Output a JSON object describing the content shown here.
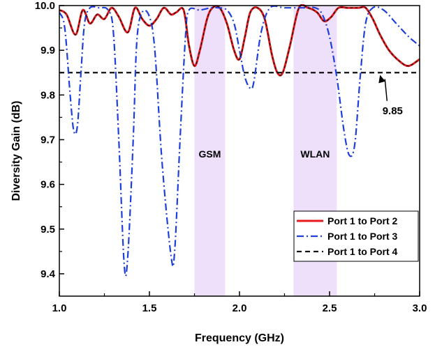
{
  "chart_data": {
    "type": "line",
    "xlabel": "Frequency (GHz)",
    "ylabel": "Diversity Gain (dB)",
    "xlim": [
      1.0,
      3.0
    ],
    "ylim": [
      9.35,
      10.0
    ],
    "xticks": [
      "1.0",
      "1.5",
      "2.0",
      "2.5",
      "3.0"
    ],
    "yticks": [
      "9.4",
      "9.5",
      "9.6",
      "9.7",
      "9.8",
      "9.9",
      "10.0"
    ],
    "grid": false,
    "legend_position": "bottom-right",
    "bands": [
      {
        "label": "GSM",
        "x0": 1.75,
        "x1": 1.92,
        "label_y": 9.66,
        "color": "#e8d4f8"
      },
      {
        "label": "WLAN",
        "x0": 2.3,
        "x1": 2.54,
        "label_y": 9.66,
        "color": "#e8d4f8"
      }
    ],
    "annotation": {
      "text": "9.85",
      "x": 2.85,
      "y": 9.765,
      "arrow_to": [
        2.78,
        9.845
      ]
    },
    "series": [
      {
        "name": "Port 1 to Port 2",
        "color": "#e41a1c",
        "style": "solid",
        "points": [
          [
            1.0,
            9.99
          ],
          [
            1.04,
            9.98
          ],
          [
            1.09,
            9.935
          ],
          [
            1.13,
            9.99
          ],
          [
            1.17,
            9.96
          ],
          [
            1.21,
            9.98
          ],
          [
            1.25,
            9.97
          ],
          [
            1.29,
            9.995
          ],
          [
            1.33,
            9.975
          ],
          [
            1.38,
            9.94
          ],
          [
            1.42,
            9.995
          ],
          [
            1.46,
            9.97
          ],
          [
            1.5,
            9.955
          ],
          [
            1.54,
            9.97
          ],
          [
            1.58,
            9.995
          ],
          [
            1.62,
            9.98
          ],
          [
            1.65,
            9.985
          ],
          [
            1.69,
            9.99
          ],
          [
            1.72,
            9.91
          ],
          [
            1.75,
            9.865
          ],
          [
            1.78,
            9.9
          ],
          [
            1.82,
            9.97
          ],
          [
            1.85,
            9.995
          ],
          [
            1.89,
            9.995
          ],
          [
            1.93,
            9.96
          ],
          [
            1.97,
            9.9
          ],
          [
            2.0,
            9.88
          ],
          [
            2.03,
            9.93
          ],
          [
            2.06,
            9.985
          ],
          [
            2.1,
            9.995
          ],
          [
            2.14,
            9.97
          ],
          [
            2.18,
            9.89
          ],
          [
            2.21,
            9.85
          ],
          [
            2.24,
            9.85
          ],
          [
            2.28,
            9.91
          ],
          [
            2.33,
            9.995
          ],
          [
            2.38,
            9.995
          ],
          [
            2.43,
            9.985
          ],
          [
            2.47,
            9.965
          ],
          [
            2.51,
            9.975
          ],
          [
            2.55,
            9.995
          ],
          [
            2.6,
            9.995
          ],
          [
            2.66,
            9.995
          ],
          [
            2.7,
            9.995
          ],
          [
            2.74,
            9.97
          ],
          [
            2.78,
            9.935
          ],
          [
            2.83,
            9.9
          ],
          [
            2.89,
            9.875
          ],
          [
            2.94,
            9.865
          ],
          [
            3.0,
            9.88
          ]
        ]
      },
      {
        "name": "Port 1 to Port 3",
        "color": "#1f3fdc",
        "style": "dashdot",
        "points": [
          [
            1.0,
            9.985
          ],
          [
            1.03,
            9.95
          ],
          [
            1.06,
            9.8
          ],
          [
            1.08,
            9.72
          ],
          [
            1.1,
            9.73
          ],
          [
            1.12,
            9.85
          ],
          [
            1.14,
            9.96
          ],
          [
            1.17,
            9.995
          ],
          [
            1.22,
            9.995
          ],
          [
            1.27,
            9.99
          ],
          [
            1.3,
            9.94
          ],
          [
            1.33,
            9.7
          ],
          [
            1.36,
            9.42
          ],
          [
            1.38,
            9.44
          ],
          [
            1.41,
            9.7
          ],
          [
            1.43,
            9.92
          ],
          [
            1.46,
            9.985
          ],
          [
            1.5,
            9.975
          ],
          [
            1.53,
            9.9
          ],
          [
            1.57,
            9.65
          ],
          [
            1.62,
            9.44
          ],
          [
            1.64,
            9.45
          ],
          [
            1.67,
            9.7
          ],
          [
            1.7,
            9.93
          ],
          [
            1.72,
            9.99
          ],
          [
            1.78,
            9.99
          ],
          [
            1.84,
            9.995
          ],
          [
            1.88,
            9.995
          ],
          [
            1.93,
            9.99
          ],
          [
            1.97,
            9.96
          ],
          [
            2.0,
            9.9
          ],
          [
            2.03,
            9.84
          ],
          [
            2.06,
            9.815
          ],
          [
            2.08,
            9.83
          ],
          [
            2.12,
            9.94
          ],
          [
            2.17,
            9.995
          ],
          [
            2.25,
            9.995
          ],
          [
            2.35,
            9.995
          ],
          [
            2.42,
            9.995
          ],
          [
            2.46,
            9.98
          ],
          [
            2.5,
            9.93
          ],
          [
            2.54,
            9.84
          ],
          [
            2.58,
            9.72
          ],
          [
            2.61,
            9.665
          ],
          [
            2.64,
            9.69
          ],
          [
            2.67,
            9.84
          ],
          [
            2.7,
            9.96
          ],
          [
            2.74,
            9.995
          ],
          [
            2.8,
            9.99
          ],
          [
            2.87,
            9.96
          ],
          [
            2.94,
            9.93
          ],
          [
            3.0,
            9.91
          ]
        ]
      },
      {
        "name": "Port 1 to Port 4",
        "color": "#111111",
        "style": "dashed",
        "points": [
          [
            1.0,
            9.85
          ],
          [
            3.0,
            9.85
          ]
        ]
      }
    ]
  }
}
